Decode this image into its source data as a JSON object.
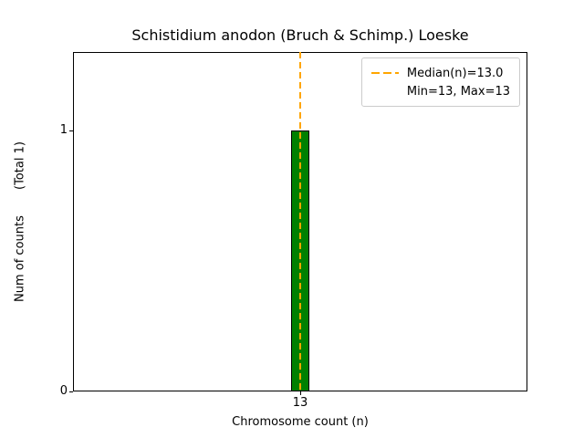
{
  "chart_data": {
    "type": "bar",
    "title": "Schistidium anodon (Bruch & Schimp.) Loeske",
    "xlabel": "Chromosome count (n)",
    "ylabel": "Num of counts",
    "ylabel_total": "(Total 1)",
    "categories": [
      "13"
    ],
    "values": [
      1
    ],
    "ylim": [
      0,
      1.3
    ],
    "ytick_values": [
      0,
      1
    ],
    "ytick_labels": [
      "0",
      "1"
    ],
    "xtick_labels": [
      "13"
    ],
    "grid": false,
    "bar_color": "#008000",
    "bar_edge_color": "#000000",
    "median": 13.0,
    "min": 13,
    "max": 13,
    "median_line_color": "#FFA500",
    "median_line_style": "dashed",
    "legend_position": "upper right",
    "legend": {
      "entries": [
        "Median(n)=13.0",
        "Min=13, Max=13"
      ]
    }
  }
}
